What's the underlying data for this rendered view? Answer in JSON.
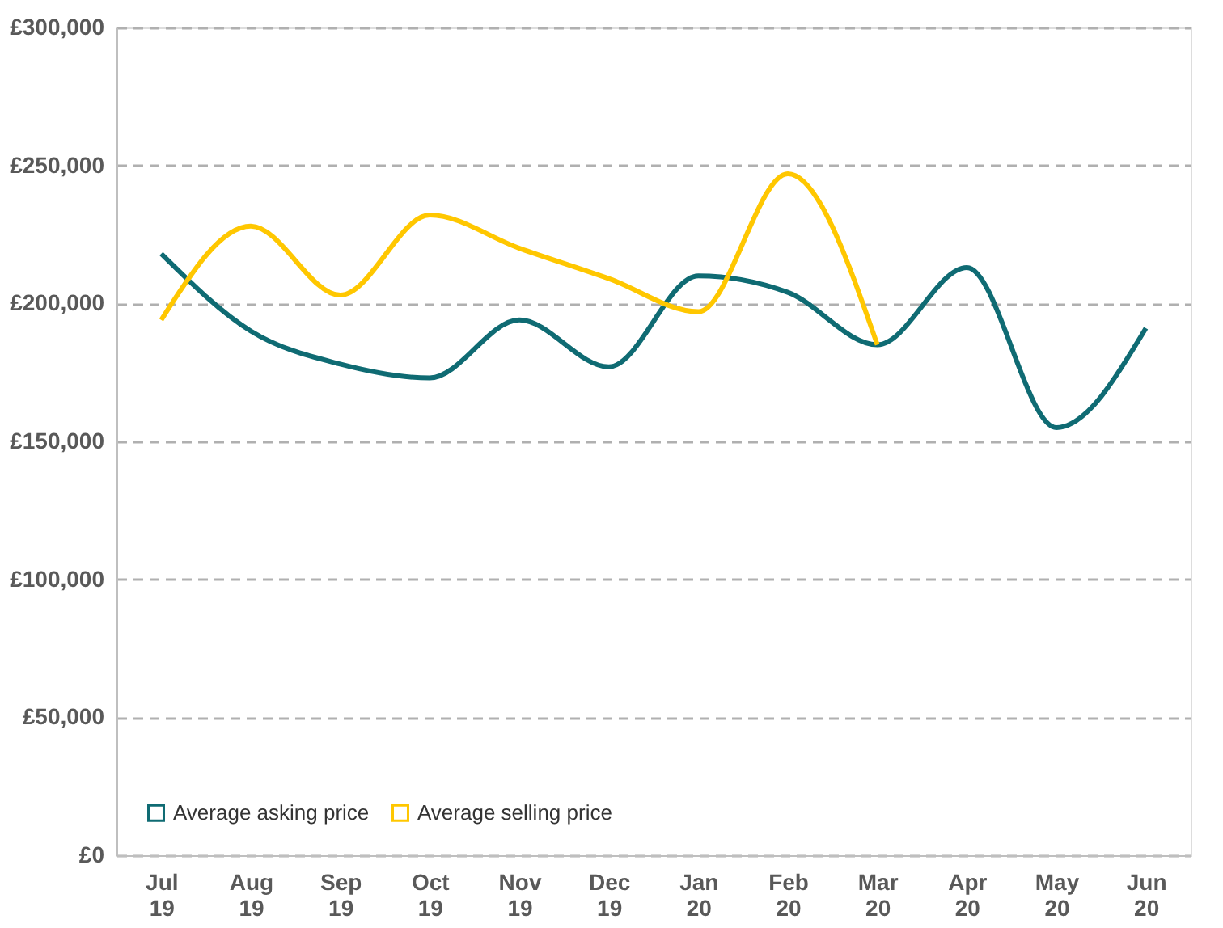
{
  "chart_data": {
    "type": "line",
    "categories": [
      "Jul 19",
      "Aug 19",
      "Sep 19",
      "Oct 19",
      "Nov 19",
      "Dec 19",
      "Jan 20",
      "Feb 20",
      "Mar 20",
      "Apr 20",
      "May 20",
      "Jun 20"
    ],
    "series": [
      {
        "name": "Average asking price",
        "color": "#0f6b73",
        "values": [
          218000,
          190000,
          178000,
          173000,
          194000,
          177000,
          210000,
          204000,
          185000,
          213000,
          155000,
          191000
        ]
      },
      {
        "name": "Average selling price",
        "color": "#ffc700",
        "values": [
          194000,
          228000,
          203000,
          232000,
          220000,
          209000,
          197000,
          247000,
          185000,
          null,
          null,
          null
        ]
      }
    ],
    "ylim": [
      0,
      300000
    ],
    "yticks": [
      {
        "value": 0,
        "label": "£0"
      },
      {
        "value": 50000,
        "label": "£50,000"
      },
      {
        "value": 100000,
        "label": "£100,000"
      },
      {
        "value": 150000,
        "label": "£150,000"
      },
      {
        "value": 200000,
        "label": "£200,000"
      },
      {
        "value": 250000,
        "label": "£250,000"
      },
      {
        "value": 300000,
        "label": "£300,000"
      }
    ],
    "grid": "y",
    "legend": "bottom left",
    "marker": "none",
    "line_style": "solid"
  }
}
